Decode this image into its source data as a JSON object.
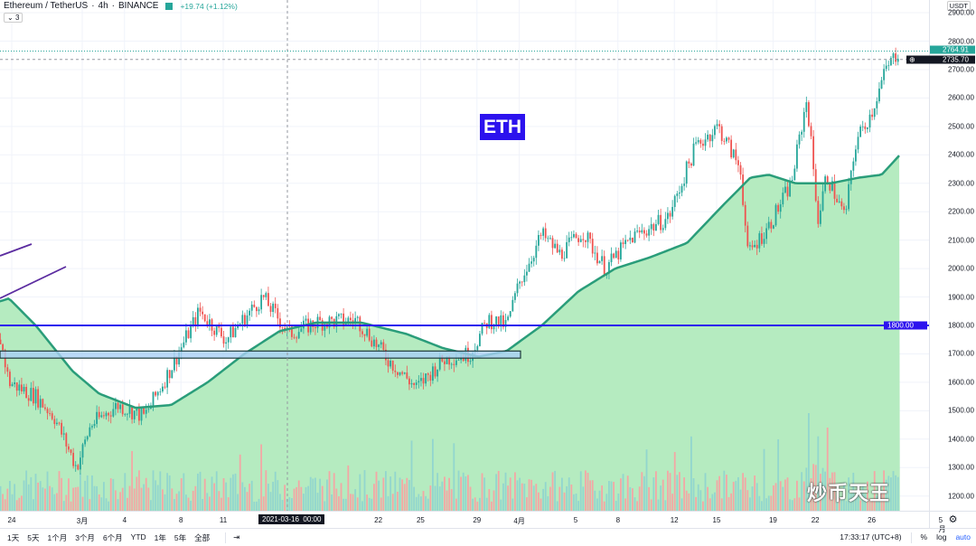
{
  "header": {
    "symbol": "Ethereum / TetherUS",
    "interval": "4h",
    "exchange": "BINANCE",
    "change": "+19.74 (+1.12%)",
    "indicators_toggle": "3"
  },
  "annotation": {
    "label": "ETH"
  },
  "price_axis": {
    "currency": "USDT",
    "ticks": [
      "2900.00",
      "2800.00",
      "2700.00",
      "2600.00",
      "2500.00",
      "2400.00",
      "2300.00",
      "2200.00",
      "2100.00",
      "2000.00",
      "1900.00",
      "1800.00",
      "1700.00",
      "1600.00",
      "1500.00",
      "1400.00",
      "1300.00",
      "1200.00"
    ],
    "last_price": "2764.91",
    "crosshair_price": "2735.70",
    "hline_price": "1800.00"
  },
  "time_axis": {
    "ticks": [
      {
        "label": "24",
        "d": 0
      },
      {
        "label": "3月",
        "d": 5
      },
      {
        "label": "4",
        "d": 8
      },
      {
        "label": "8",
        "d": 12
      },
      {
        "label": "11",
        "d": 15
      },
      {
        "label": "22",
        "d": 26
      },
      {
        "label": "25",
        "d": 29
      },
      {
        "label": "29",
        "d": 33
      },
      {
        "label": "4月",
        "d": 36
      },
      {
        "label": "5",
        "d": 40
      },
      {
        "label": "8",
        "d": 43
      },
      {
        "label": "12",
        "d": 47
      },
      {
        "label": "15",
        "d": 50
      },
      {
        "label": "19",
        "d": 54
      },
      {
        "label": "22",
        "d": 57
      },
      {
        "label": "26",
        "d": 61
      },
      {
        "label": "5月",
        "d": 66
      }
    ],
    "crosshair_label": "2021-03-16  00:00"
  },
  "ranges": [
    "1天",
    "5天",
    "1个月",
    "3个月",
    "6个月",
    "YTD",
    "1年",
    "5年",
    "全部"
  ],
  "status": {
    "time": "17:33:17 (UTC+8)",
    "percent": "%",
    "log": "log",
    "auto": "auto"
  },
  "watermark": "炒币天王",
  "colors": {
    "up": "#26a69a",
    "down": "#ef5350",
    "area": "#b5ebc0",
    "curve": "#2a9d7a",
    "hline": "#2c12ee",
    "box": "#a9d0f5"
  },
  "chart_data": {
    "type": "candlestick",
    "x_unit": "days since Feb 24",
    "price_anchors": [
      [
        -0.8,
        1750
      ],
      [
        -0.2,
        1600
      ],
      [
        1.7,
        1550
      ],
      [
        3,
        1480
      ],
      [
        4.6,
        1300
      ],
      [
        5.6,
        1450
      ],
      [
        7.5,
        1520
      ],
      [
        9.4,
        1480
      ],
      [
        11.3,
        1650
      ],
      [
        13.3,
        1850
      ],
      [
        15.2,
        1750
      ],
      [
        17.8,
        1900
      ],
      [
        19.7,
        1770
      ],
      [
        21.6,
        1810
      ],
      [
        24.5,
        1820
      ],
      [
        26.7,
        1680
      ],
      [
        28.7,
        1580
      ],
      [
        30.6,
        1680
      ],
      [
        32.5,
        1700
      ],
      [
        33.8,
        1820
      ],
      [
        35.1,
        1800
      ],
      [
        36,
        1950
      ],
      [
        37.6,
        2120
      ],
      [
        38.9,
        2050
      ],
      [
        40.5,
        2130
      ],
      [
        42.1,
        2000
      ],
      [
        44,
        2110
      ],
      [
        46.6,
        2180
      ],
      [
        48.5,
        2430
      ],
      [
        50.1,
        2500
      ],
      [
        51.7,
        2350
      ],
      [
        52.2,
        2050
      ],
      [
        53.7,
        2150
      ],
      [
        55.3,
        2300
      ],
      [
        56.4,
        2600
      ],
      [
        57.2,
        2170
      ],
      [
        57.8,
        2330
      ],
      [
        59.1,
        2180
      ],
      [
        59.9,
        2450
      ],
      [
        61,
        2550
      ],
      [
        62,
        2700
      ],
      [
        62.9,
        2765
      ]
    ],
    "curve_anchors": [
      [
        -0.8,
        1885
      ],
      [
        -0.2,
        1895
      ],
      [
        1.7,
        1800
      ],
      [
        4.3,
        1640
      ],
      [
        6.2,
        1560
      ],
      [
        8.8,
        1510
      ],
      [
        11.3,
        1520
      ],
      [
        13.9,
        1600
      ],
      [
        16.5,
        1700
      ],
      [
        19,
        1780
      ],
      [
        21.6,
        1810
      ],
      [
        24.8,
        1810
      ],
      [
        28,
        1770
      ],
      [
        30.6,
        1720
      ],
      [
        33.1,
        1690
      ],
      [
        35.1,
        1710
      ],
      [
        37.6,
        1800
      ],
      [
        40.2,
        1920
      ],
      [
        42.8,
        2000
      ],
      [
        45.3,
        2040
      ],
      [
        47.9,
        2090
      ],
      [
        50.4,
        2220
      ],
      [
        52.4,
        2320
      ],
      [
        53.7,
        2330
      ],
      [
        55.6,
        2300
      ],
      [
        58.1,
        2300
      ],
      [
        60.1,
        2320
      ],
      [
        61.7,
        2330
      ],
      [
        63,
        2400
      ]
    ],
    "hline": 1800,
    "box_range": [
      1685,
      1710
    ],
    "ylim": [
      1130,
      2930
    ]
  }
}
